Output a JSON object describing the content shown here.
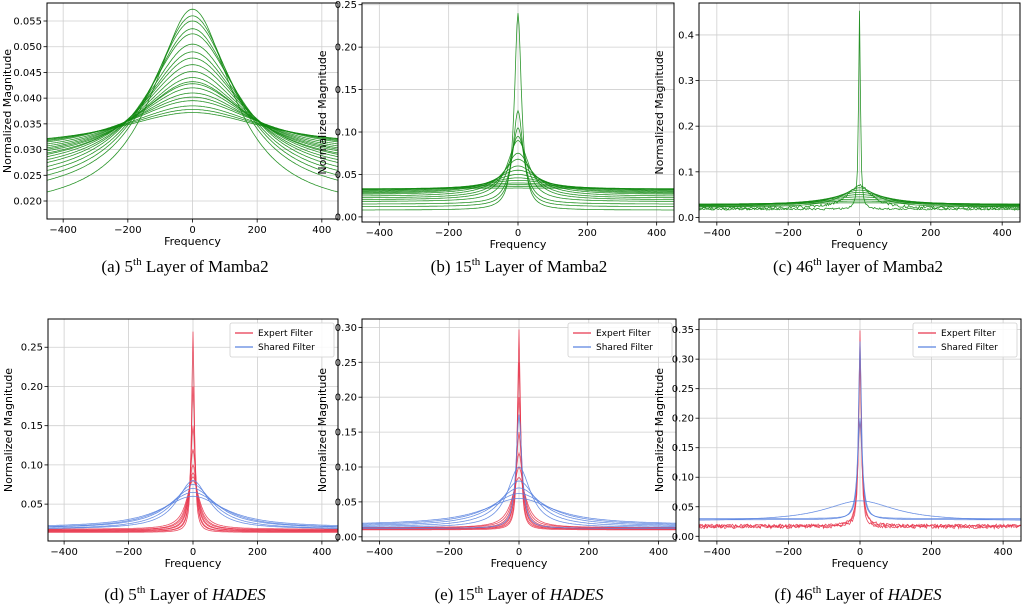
{
  "chart_data": [
    {
      "type": "line",
      "caption": {
        "prefix": "(a) 5",
        "sup": "th",
        "suffix": " Layer of ",
        "model": "Mamba2"
      },
      "xlabel": "Frequency",
      "ylabel": "Normalized Magnitude",
      "xlim": [
        -450,
        450
      ],
      "ylim": [
        0.0165,
        0.0585
      ],
      "xticks": [
        -400,
        -200,
        0,
        200,
        400
      ],
      "yticks": [
        0.02,
        0.025,
        0.03,
        0.035,
        0.04,
        0.045,
        0.05,
        0.055
      ],
      "ytick_labels": [
        "0.020",
        "0.025",
        "0.030",
        "0.035",
        "0.040",
        "0.045",
        "0.050",
        "0.055"
      ],
      "grid": true,
      "colors": [
        "#138a13"
      ],
      "series": [
        {
          "group": 0,
          "center": 0.0573,
          "edge": 0.0178,
          "width": 150
        },
        {
          "group": 0,
          "center": 0.056,
          "edge": 0.02,
          "width": 160
        },
        {
          "group": 0,
          "center": 0.055,
          "edge": 0.021,
          "width": 165
        },
        {
          "group": 0,
          "center": 0.0535,
          "edge": 0.022,
          "width": 170
        },
        {
          "group": 0,
          "center": 0.0525,
          "edge": 0.0228,
          "width": 175
        },
        {
          "group": 0,
          "center": 0.0505,
          "edge": 0.0238,
          "width": 180
        },
        {
          "group": 0,
          "center": 0.049,
          "edge": 0.0245,
          "width": 185
        },
        {
          "group": 0,
          "center": 0.0478,
          "edge": 0.0252,
          "width": 190
        },
        {
          "group": 0,
          "center": 0.0465,
          "edge": 0.0258,
          "width": 195
        },
        {
          "group": 0,
          "center": 0.0452,
          "edge": 0.0262,
          "width": 200
        },
        {
          "group": 0,
          "center": 0.044,
          "edge": 0.0268,
          "width": 205
        },
        {
          "group": 0,
          "center": 0.0432,
          "edge": 0.0272,
          "width": 210
        },
        {
          "group": 0,
          "center": 0.0428,
          "edge": 0.0275,
          "width": 215
        },
        {
          "group": 0,
          "center": 0.042,
          "edge": 0.028,
          "width": 220
        },
        {
          "group": 0,
          "center": 0.041,
          "edge": 0.0285,
          "width": 230
        },
        {
          "group": 0,
          "center": 0.0402,
          "edge": 0.029,
          "width": 240
        },
        {
          "group": 0,
          "center": 0.0395,
          "edge": 0.0293,
          "width": 250
        },
        {
          "group": 0,
          "center": 0.0385,
          "edge": 0.0297,
          "width": 260
        },
        {
          "group": 0,
          "center": 0.0378,
          "edge": 0.03,
          "width": 270
        },
        {
          "group": 0,
          "center": 0.0372,
          "edge": 0.0302,
          "width": 280
        }
      ]
    },
    {
      "type": "line",
      "caption": {
        "prefix": "(b) 15",
        "sup": "th",
        "suffix": " Layer of ",
        "model": "Mamba2"
      },
      "xlabel": "Frequency",
      "ylabel": "Normalized Magnitude",
      "xlim": [
        -450,
        450
      ],
      "ylim": [
        -0.006,
        0.252
      ],
      "xticks": [
        -400,
        -200,
        0,
        200,
        400
      ],
      "yticks": [
        0.0,
        0.05,
        0.1,
        0.15,
        0.2,
        0.25
      ],
      "ytick_labels": [
        "0.00",
        "0.05",
        "0.10",
        "0.15",
        "0.20",
        "0.25"
      ],
      "grid": true,
      "colors": [
        "#138a13"
      ],
      "series": [
        {
          "group": 0,
          "center": 0.24,
          "edge": 0.008,
          "width": 12
        },
        {
          "group": 0,
          "center": 0.125,
          "edge": 0.012,
          "width": 18
        },
        {
          "group": 0,
          "center": 0.105,
          "edge": 0.015,
          "width": 22
        },
        {
          "group": 0,
          "center": 0.095,
          "edge": 0.018,
          "width": 30
        },
        {
          "group": 0,
          "center": 0.09,
          "edge": 0.02,
          "width": 38
        },
        {
          "group": 0,
          "center": 0.075,
          "edge": 0.022,
          "width": 48
        },
        {
          "group": 0,
          "center": 0.068,
          "edge": 0.024,
          "width": 58
        },
        {
          "group": 0,
          "center": 0.06,
          "edge": 0.026,
          "width": 70
        },
        {
          "group": 0,
          "center": 0.055,
          "edge": 0.027,
          "width": 85
        },
        {
          "group": 0,
          "center": 0.05,
          "edge": 0.028,
          "width": 100
        },
        {
          "group": 0,
          "center": 0.046,
          "edge": 0.029,
          "width": 120
        },
        {
          "group": 0,
          "center": 0.043,
          "edge": 0.03,
          "width": 140
        },
        {
          "group": 0,
          "center": 0.04,
          "edge": 0.031,
          "width": 160
        },
        {
          "group": 0,
          "center": 0.038,
          "edge": 0.032,
          "width": 180
        },
        {
          "group": 0,
          "center": 0.036,
          "edge": 0.032,
          "width": 200
        },
        {
          "group": 0,
          "center": 0.034,
          "edge": 0.033,
          "width": 220
        }
      ]
    },
    {
      "type": "line",
      "caption": {
        "prefix": "(c) 46",
        "sup": "th",
        "suffix": " layer of ",
        "model": "Mamba2"
      },
      "xlabel": "Frequency",
      "ylabel": "Normalized Magnitude",
      "xlim": [
        -450,
        450
      ],
      "ylim": [
        -0.01,
        0.47
      ],
      "xticks": [
        -400,
        -200,
        0,
        200,
        400
      ],
      "yticks": [
        0.0,
        0.1,
        0.2,
        0.3,
        0.4
      ],
      "ytick_labels": [
        "0.0",
        "0.1",
        "0.2",
        "0.3",
        "0.4"
      ],
      "grid": true,
      "colors": [
        "#138a13"
      ],
      "series": [
        {
          "group": 0,
          "center": 0.455,
          "edge": 0.018,
          "width": 3,
          "noise": 0.004
        },
        {
          "group": 0,
          "center": 0.07,
          "edge": 0.02,
          "width": 40,
          "noise": 0.006
        },
        {
          "group": 0,
          "center": 0.065,
          "edge": 0.022,
          "width": 60
        },
        {
          "group": 0,
          "center": 0.06,
          "edge": 0.023,
          "width": 80
        },
        {
          "group": 0,
          "center": 0.055,
          "edge": 0.024,
          "width": 100
        },
        {
          "group": 0,
          "center": 0.05,
          "edge": 0.025,
          "width": 120
        },
        {
          "group": 0,
          "center": 0.045,
          "edge": 0.026,
          "width": 140
        },
        {
          "group": 0,
          "center": 0.04,
          "edge": 0.027,
          "width": 160
        },
        {
          "group": 0,
          "center": 0.036,
          "edge": 0.028,
          "width": 180
        },
        {
          "group": 0,
          "center": 0.032,
          "edge": 0.029,
          "width": 200
        }
      ]
    },
    {
      "type": "line",
      "caption": {
        "prefix": "(d) 5",
        "sup": "th",
        "suffix": " Layer of ",
        "model": "HADES"
      },
      "xlabel": "Frequency",
      "ylabel": "Normalized Magnitude",
      "xlim": [
        -450,
        450
      ],
      "ylim": [
        0.003,
        0.286
      ],
      "xticks": [
        -400,
        -200,
        0,
        200,
        400
      ],
      "yticks": [
        0.05,
        0.1,
        0.15,
        0.2,
        0.25
      ],
      "ytick_labels": [
        "0.05",
        "0.10",
        "0.15",
        "0.20",
        "0.25"
      ],
      "grid": true,
      "colors": [
        "#e8384f",
        "#5b84e0"
      ],
      "legend": {
        "position": "top-right",
        "entries": [
          "Expert Filter",
          "Shared Filter"
        ]
      },
      "series": [
        {
          "group": 0,
          "center": 0.27,
          "edge": 0.014,
          "width": 5
        },
        {
          "group": 0,
          "center": 0.2,
          "edge": 0.015,
          "width": 7
        },
        {
          "group": 0,
          "center": 0.15,
          "edge": 0.015,
          "width": 9
        },
        {
          "group": 0,
          "center": 0.12,
          "edge": 0.016,
          "width": 12
        },
        {
          "group": 0,
          "center": 0.1,
          "edge": 0.016,
          "width": 15
        },
        {
          "group": 0,
          "center": 0.09,
          "edge": 0.017,
          "width": 18
        },
        {
          "group": 0,
          "center": 0.085,
          "edge": 0.017,
          "width": 21
        },
        {
          "group": 0,
          "center": 0.08,
          "edge": 0.018,
          "width": 25
        },
        {
          "group": 1,
          "center": 0.08,
          "edge": 0.018,
          "width": 60
        },
        {
          "group": 1,
          "center": 0.075,
          "edge": 0.018,
          "width": 75
        },
        {
          "group": 1,
          "center": 0.07,
          "edge": 0.019,
          "width": 90
        },
        {
          "group": 1,
          "center": 0.065,
          "edge": 0.019,
          "width": 105
        },
        {
          "group": 1,
          "center": 0.06,
          "edge": 0.02,
          "width": 120
        }
      ]
    },
    {
      "type": "line",
      "caption": {
        "prefix": "(e) 15",
        "sup": "th",
        "suffix": " Layer of ",
        "model": "HADES"
      },
      "xlabel": "Frequency",
      "ylabel": "Normalized Magnitude",
      "xlim": [
        -450,
        450
      ],
      "ylim": [
        -0.006,
        0.312
      ],
      "xticks": [
        -400,
        -200,
        0,
        200,
        400
      ],
      "yticks": [
        0.0,
        0.05,
        0.1,
        0.15,
        0.2,
        0.25,
        0.3
      ],
      "ytick_labels": [
        "0.00",
        "0.05",
        "0.10",
        "0.15",
        "0.20",
        "0.25",
        "0.30"
      ],
      "grid": true,
      "colors": [
        "#e8384f",
        "#5b84e0"
      ],
      "legend": {
        "position": "top-right",
        "entries": [
          "Expert Filter",
          "Shared Filter"
        ]
      },
      "series": [
        {
          "group": 0,
          "center": 0.297,
          "edge": 0.01,
          "width": 5
        },
        {
          "group": 0,
          "center": 0.25,
          "edge": 0.011,
          "width": 6
        },
        {
          "group": 0,
          "center": 0.2,
          "edge": 0.011,
          "width": 8
        },
        {
          "group": 0,
          "center": 0.15,
          "edge": 0.012,
          "width": 10
        },
        {
          "group": 0,
          "center": 0.12,
          "edge": 0.012,
          "width": 14
        },
        {
          "group": 0,
          "center": 0.1,
          "edge": 0.013,
          "width": 18
        },
        {
          "group": 0,
          "center": 0.085,
          "edge": 0.013,
          "width": 24
        },
        {
          "group": 1,
          "center": 0.175,
          "edge": 0.012,
          "width": 10
        },
        {
          "group": 1,
          "center": 0.1,
          "edge": 0.013,
          "width": 40
        },
        {
          "group": 1,
          "center": 0.08,
          "edge": 0.014,
          "width": 60
        },
        {
          "group": 1,
          "center": 0.07,
          "edge": 0.015,
          "width": 80
        },
        {
          "group": 1,
          "center": 0.062,
          "edge": 0.016,
          "width": 100
        },
        {
          "group": 1,
          "center": 0.055,
          "edge": 0.017,
          "width": 120
        }
      ]
    },
    {
      "type": "line",
      "caption": {
        "prefix": "(f) 46",
        "sup": "th",
        "suffix": " Layer of ",
        "model": "HADES"
      },
      "xlabel": "Frequency",
      "ylabel": "Normalized Magnitude",
      "xlim": [
        -450,
        450
      ],
      "ylim": [
        -0.008,
        0.368
      ],
      "xticks": [
        -400,
        -200,
        0,
        200,
        400
      ],
      "yticks": [
        0.0,
        0.05,
        0.1,
        0.15,
        0.2,
        0.25,
        0.3,
        0.35
      ],
      "ytick_labels": [
        "0.00",
        "0.05",
        "0.10",
        "0.15",
        "0.20",
        "0.25",
        "0.30",
        "0.35"
      ],
      "grid": true,
      "colors": [
        "#e8384f",
        "#5b84e0"
      ],
      "legend": {
        "position": "top-right",
        "entries": [
          "Expert Filter",
          "Shared Filter"
        ]
      },
      "series": [
        {
          "group": 0,
          "center": 0.35,
          "edge": 0.016,
          "width": 4,
          "noise": 0.006
        },
        {
          "group": 0,
          "center": 0.3,
          "edge": 0.017,
          "width": 5,
          "noise": 0.006
        },
        {
          "group": 0,
          "center": 0.2,
          "edge": 0.018,
          "width": 7,
          "noise": 0.005
        },
        {
          "group": 1,
          "center": 0.33,
          "edge": 0.03,
          "width": 5
        },
        {
          "group": 1,
          "center": 0.2,
          "edge": 0.028,
          "width": 8
        },
        {
          "group": 1,
          "center": 0.06,
          "edge": 0.025,
          "width": 120
        }
      ]
    }
  ]
}
